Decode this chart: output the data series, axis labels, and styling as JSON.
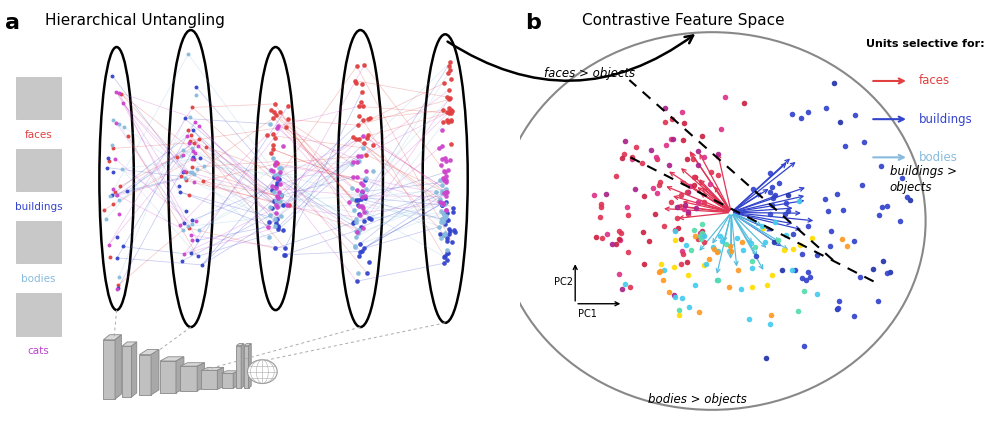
{
  "title_a": "Hierarchical Untangling",
  "title_b": "Contrastive Feature Space",
  "label_a": "a",
  "label_b": "b",
  "categories": [
    "faces",
    "buildings",
    "bodies",
    "cats"
  ],
  "category_colors": [
    "#e04040",
    "#3344cc",
    "#88bbdd",
    "#bb44cc"
  ],
  "background_color": "#ffffff",
  "legend_title": "Units selective for:",
  "legend_entries": [
    {
      "label": "faces",
      "color": "#e04040"
    },
    {
      "label": "buildings",
      "color": "#3344cc"
    },
    {
      "label": "bodies",
      "color": "#88bbdd"
    }
  ],
  "face_color": "#e04040",
  "build_color": "#3344cc",
  "body_color": "#88bbdd",
  "cat_color": "#cc44cc",
  "face_color2": "#cc2255",
  "purple_color": "#9933aa",
  "cyan_color": "#44ccee",
  "orange_color": "#ff9922",
  "yellow_color": "#ffdd00",
  "region_labels": [
    "faces > objects",
    "buildings >\nobjects",
    "bodies > objects"
  ],
  "pc_label_x": "PC1",
  "pc_label_y": "PC2"
}
